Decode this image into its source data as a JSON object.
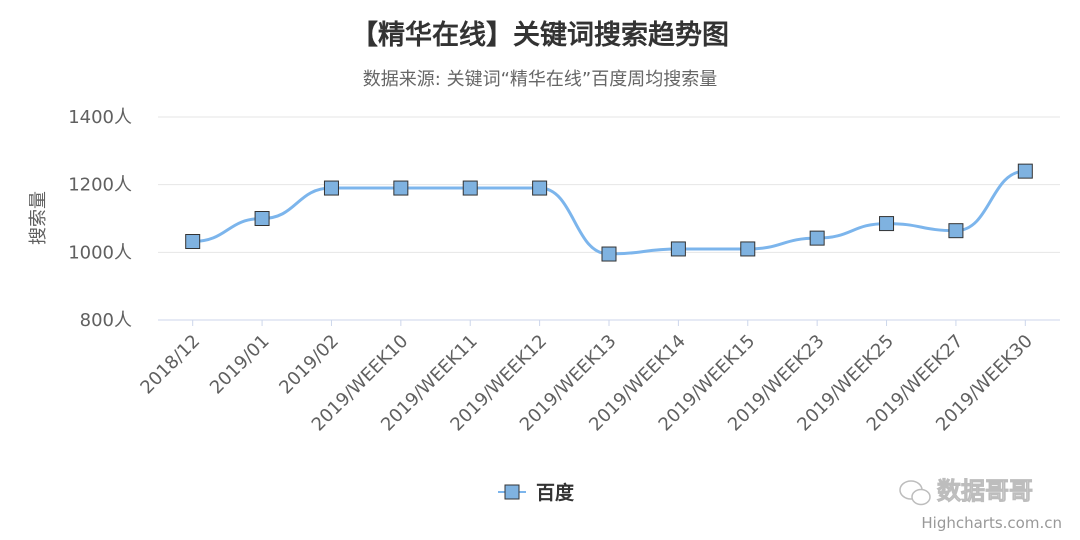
{
  "chart_data": {
    "type": "line",
    "title": "【精华在线】关键词搜索趋势图",
    "subtitle": "数据来源: 关键词“精华在线”百度周均搜索量",
    "ylabel": "搜索量",
    "y_unit": "人",
    "ylim": [
      800,
      1400
    ],
    "yticks": [
      800,
      1000,
      1200,
      1400
    ],
    "grid": true,
    "legend_position": "bottom-center",
    "categories": [
      "2018/12",
      "2019/01",
      "2019/02",
      "2019/WEEK10",
      "2019/WEEK11",
      "2019/WEEK12",
      "2019/WEEK13",
      "2019/WEEK14",
      "2019/WEEK15",
      "2019/WEEK23",
      "2019/WEEK25",
      "2019/WEEK27",
      "2019/WEEK30"
    ],
    "series": [
      {
        "name": "百度",
        "color": "#7cb5ec",
        "marker_fill": "#7fb2e0",
        "values": [
          1032,
          1100,
          1190,
          1190,
          1190,
          1190,
          995,
          1010,
          1010,
          1042,
          1085,
          1064,
          1240
        ]
      }
    ]
  },
  "credit": "Highcharts.com.cn",
  "watermark": "数据哥哥"
}
